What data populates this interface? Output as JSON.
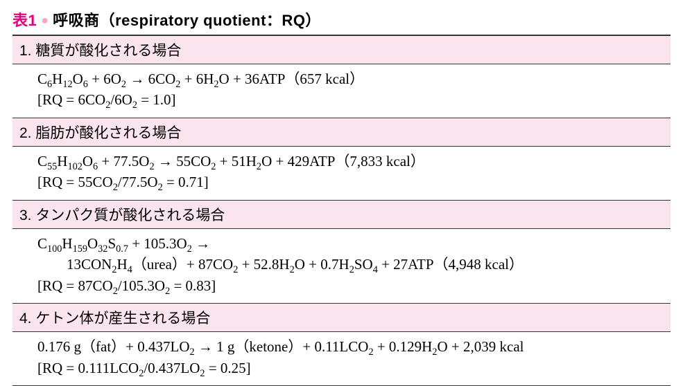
{
  "colors": {
    "label": "#e6007e",
    "bullet": "#f4a6c8",
    "header_bg": "#fae5ee",
    "rule": "#333333",
    "text": "#000000",
    "bg": "#ffffff"
  },
  "typography": {
    "title_fontsize_pt": 16,
    "row_header_fontsize_pt": 15,
    "body_fontsize_pt": 15,
    "title_weight": "bold",
    "body_family": "serif"
  },
  "title": {
    "label": "表1",
    "bullet": "●",
    "main": "呼吸商（respiratory quotient：RQ）"
  },
  "rows": [
    {
      "header": "1. 糖質が酸化される場合",
      "equation_html": "C<sub>6</sub>H<sub>12</sub>O<sub>6</sub> + 6O<sub>2</sub> → 6CO<sub>2</sub> + 6H<sub>2</sub>O + 36ATP（657 kcal）",
      "rq_html": "[RQ = 6CO<sub>2</sub>/6O<sub>2</sub> = 1.0]"
    },
    {
      "header": "2. 脂肪が酸化される場合",
      "equation_html": "C<sub>55</sub>H<sub>102</sub>O<sub>6</sub> + 77.5O<sub>2</sub> → 55CO<sub>2</sub> + 51H<sub>2</sub>O + 429ATP（7,833 kcal）",
      "rq_html": "[RQ = 55CO<sub>2</sub>/77.5O<sub>2</sub> = 0.71]"
    },
    {
      "header": "3. タンパク質が酸化される場合",
      "equation_html": "C<sub>100</sub>H<sub>159</sub>O<sub>32</sub>S<sub>0.7</sub> + 105.3O<sub>2</sub> →<br><span class=\"indent\"></span>13CON<sub>2</sub>H<sub>4</sub>（urea）+ 87CO<sub>2</sub> + 52.8H<sub>2</sub>O + 0.7H<sub>2</sub>SO<sub>4</sub> + 27ATP（4,948 kcal）",
      "rq_html": "[RQ = 87CO<sub>2</sub>/105.3O<sub>2</sub> = 0.83]"
    },
    {
      "header": "4. ケトン体が産生される場合",
      "equation_html": "0.176 g（fat）+ 0.437LO<sub>2</sub> → 1 g（ketone）+ 0.11LCO<sub>2</sub> + 0.129H<sub>2</sub>O + 2,039 kcal",
      "rq_html": "[RQ = 0.111LCO<sub>2</sub>/0.437LO<sub>2</sub> = 0.25]"
    }
  ]
}
